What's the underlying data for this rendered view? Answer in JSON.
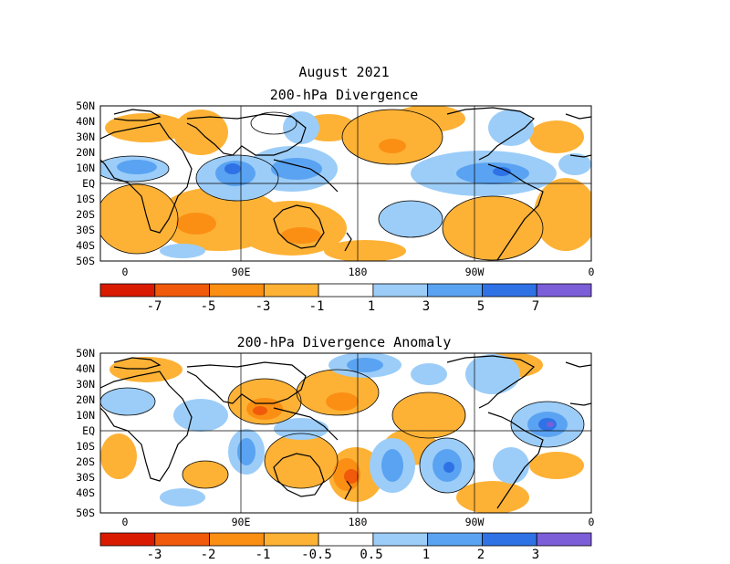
{
  "title": "August 2021",
  "panels": [
    {
      "id": "total",
      "title": "200-hPa Divergence",
      "lat_labels": [
        "50N",
        "40N",
        "30N",
        "20N",
        "10N",
        "EQ",
        "10S",
        "20S",
        "30S",
        "40S",
        "50S"
      ],
      "lon_labels": [
        "0",
        "90E",
        "180",
        "90W",
        "0"
      ],
      "colorbar": {
        "colors": [
          "#d91a00",
          "#f05a0a",
          "#fb8f14",
          "#fdb236",
          "#ffffff",
          "#9ccdf8",
          "#5aa3f2",
          "#2f72e6",
          "#7b5ed8"
        ],
        "labels": [
          "-7",
          "-5",
          "-3",
          "-1",
          "1",
          "3",
          "5",
          "7"
        ]
      }
    },
    {
      "id": "anomaly",
      "title": "200-hPa Divergence Anomaly",
      "lat_labels": [
        "50N",
        "40N",
        "30N",
        "20N",
        "10N",
        "EQ",
        "10S",
        "20S",
        "30S",
        "40S",
        "50S"
      ],
      "lon_labels": [
        "0",
        "90E",
        "180",
        "90W",
        "0"
      ],
      "colorbar": {
        "colors": [
          "#d91a00",
          "#f05a0a",
          "#fb8f14",
          "#fdb236",
          "#ffffff",
          "#9ccdf8",
          "#5aa3f2",
          "#2f72e6",
          "#7b5ed8"
        ],
        "labels": [
          "-3",
          "-2",
          "-1",
          "-0.5",
          "0.5",
          "1",
          "2",
          "3"
        ]
      }
    }
  ]
}
